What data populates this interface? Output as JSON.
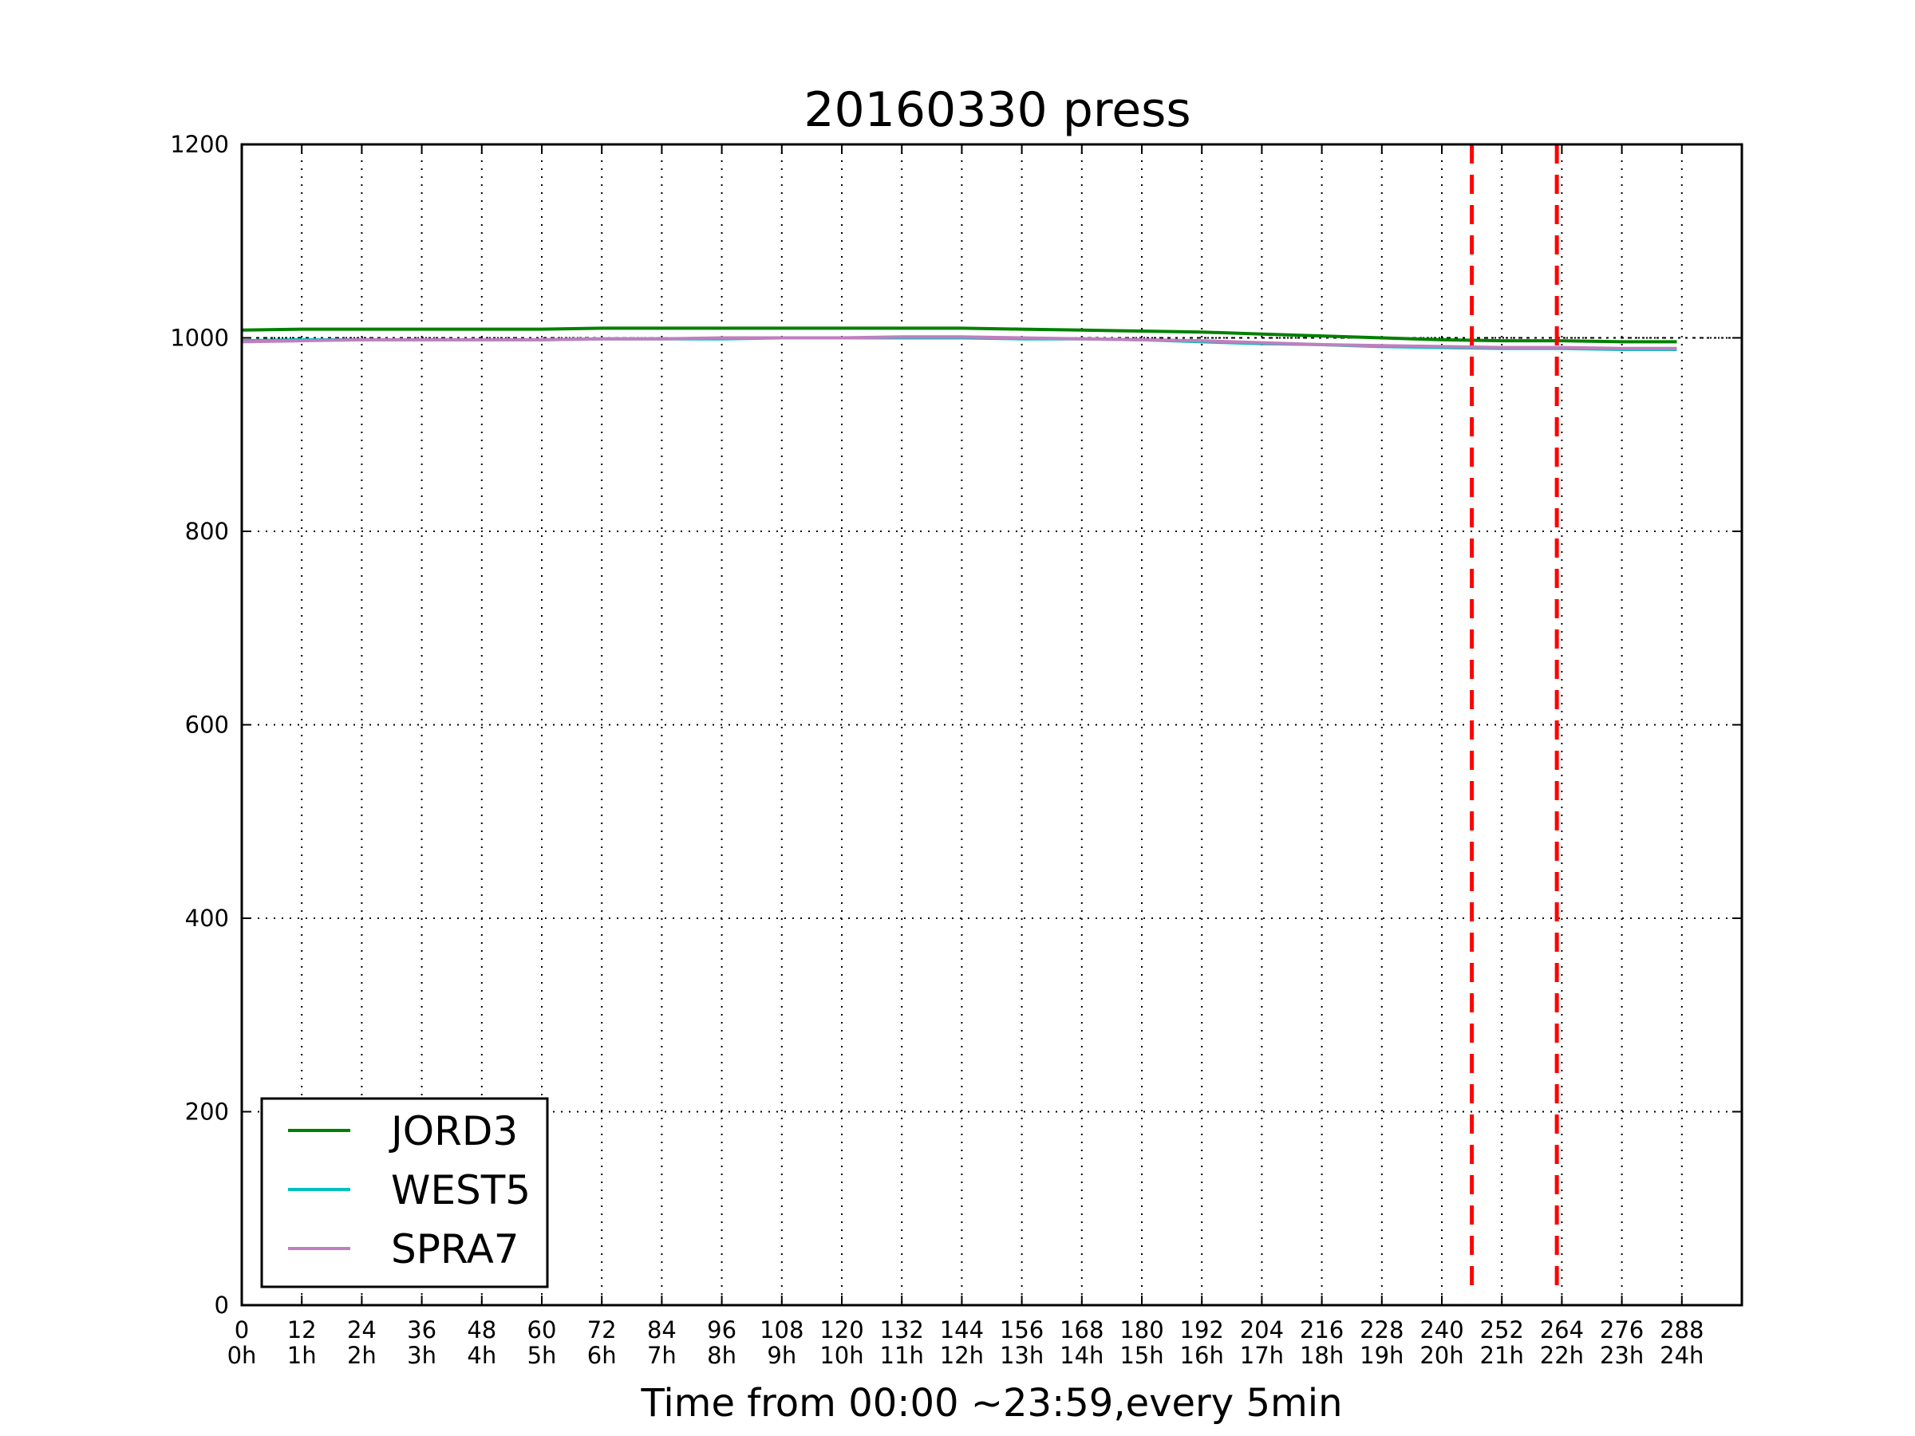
{
  "chart_data": {
    "type": "line",
    "title": "20160330 press",
    "xlabel": "Time from 00:00 ~23:59,every 5min",
    "ylabel": "",
    "xlim": [
      0,
      300
    ],
    "ylim": [
      0,
      1200
    ],
    "grid": true,
    "legend_position": "lower-left",
    "x_ticks": [
      0,
      12,
      24,
      36,
      48,
      60,
      72,
      84,
      96,
      108,
      120,
      132,
      144,
      156,
      168,
      180,
      192,
      204,
      216,
      228,
      240,
      252,
      264,
      276,
      288
    ],
    "x_tick_labels": [
      "0\n0h",
      "12\n1h",
      "24\n2h",
      "36\n3h",
      "48\n4h",
      "60\n5h",
      "72\n6h",
      "84\n7h",
      "96\n8h",
      "108\n9h",
      "120\n10h",
      "132\n11h",
      "144\n12h",
      "156\n13h",
      "168\n14h",
      "180\n15h",
      "192\n16h",
      "204\n17h",
      "216\n18h",
      "228\n19h",
      "240\n20h",
      "252\n21h",
      "264\n22h",
      "276\n23h",
      "288\n24h"
    ],
    "y_ticks": [
      0,
      200,
      400,
      600,
      800,
      1000,
      1200
    ],
    "reference_line": {
      "y": 1000,
      "style": "dotted",
      "color": "#000000"
    },
    "vertical_markers": [
      {
        "x": 246,
        "color": "#ff0000",
        "style": "dashed"
      },
      {
        "x": 263,
        "color": "#ff0000",
        "style": "dashed"
      }
    ],
    "x": [
      0,
      12,
      24,
      36,
      48,
      60,
      72,
      84,
      96,
      108,
      120,
      132,
      144,
      156,
      168,
      180,
      192,
      204,
      216,
      228,
      240,
      252,
      264,
      276,
      287
    ],
    "series": [
      {
        "name": "JORD3",
        "color": "#008000",
        "values": [
          1008,
          1009,
          1009,
          1009,
          1009,
          1009,
          1010,
          1010,
          1010,
          1010,
          1010,
          1010,
          1010,
          1009,
          1008,
          1007,
          1006,
          1004,
          1002,
          1000,
          998,
          997,
          997,
          996,
          996
        ]
      },
      {
        "name": "WEST5",
        "color": "#00bfbf",
        "values": [
          997,
          998,
          998,
          998,
          998,
          998,
          999,
          999,
          999,
          1000,
          1000,
          1000,
          1000,
          999,
          999,
          998,
          996,
          994,
          993,
          991,
          990,
          989,
          989,
          988,
          988
        ]
      },
      {
        "name": "SPRA7",
        "color": "#bf7fbf",
        "values": [
          996,
          997,
          998,
          998,
          998,
          998,
          999,
          999,
          1000,
          1000,
          1000,
          1001,
          1001,
          1000,
          999,
          998,
          997,
          995,
          993,
          992,
          991,
          990,
          990,
          989,
          989
        ]
      }
    ]
  }
}
